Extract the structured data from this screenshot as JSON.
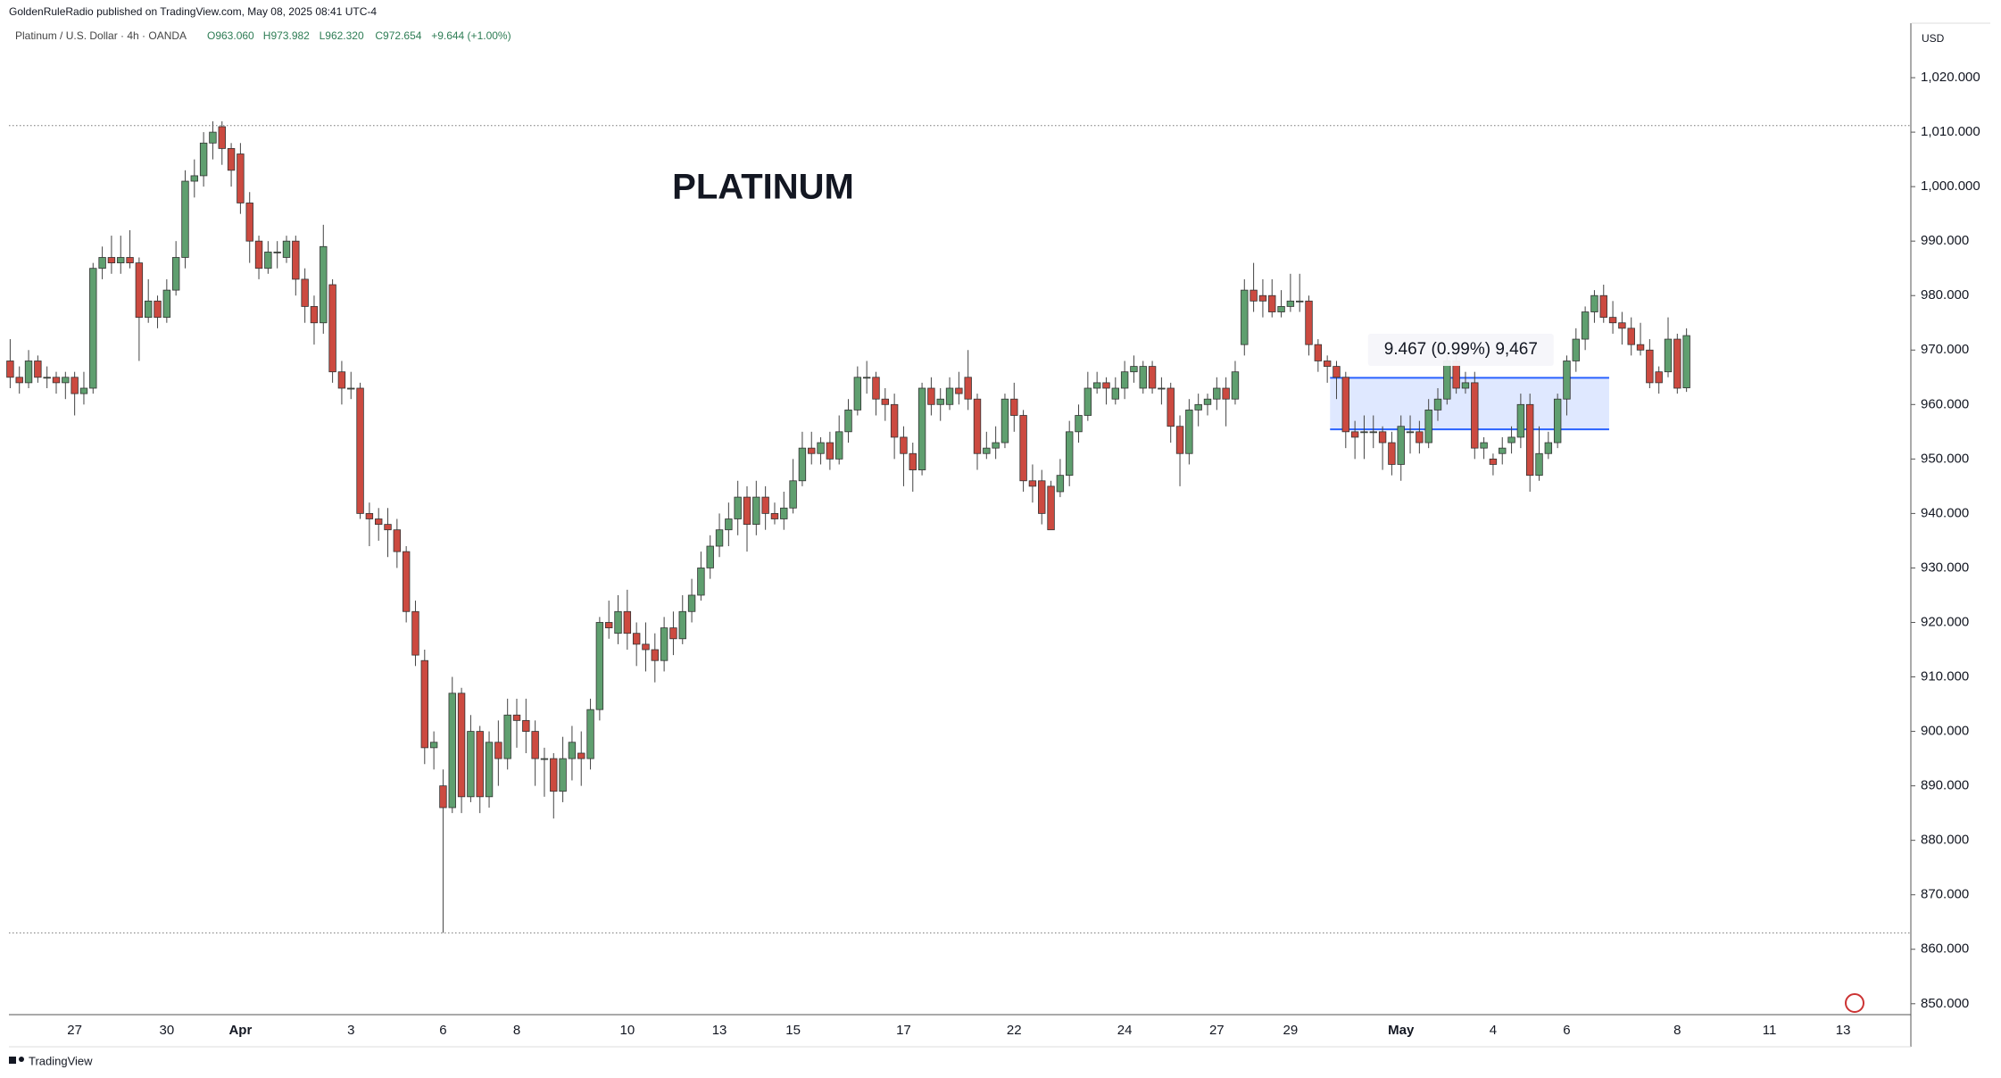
{
  "chart_data": {
    "type": "candlestick",
    "publisher": "GoldenRuleRadio published on TradingView.com, May 08, 2025 08:41 UTC-4",
    "symbol": "Platinum / U.S. Dollar · 4h · OANDA",
    "ohlc_legend": [
      "O963.060",
      "H973.982",
      "L962.320",
      "C972.654",
      "+9.644 (+1.00%)"
    ],
    "title": "PLATINUM",
    "currency": "USD",
    "brand": "TradingView",
    "up_color": "#5f9f6f",
    "down_color": "#cc4a40",
    "ylim": [
      848,
      1030
    ],
    "yticks": [
      {
        "value": 850,
        "label": "850.000"
      },
      {
        "value": 860,
        "label": "860.000"
      },
      {
        "value": 870,
        "label": "870.000"
      },
      {
        "value": 880,
        "label": "880.000"
      },
      {
        "value": 890,
        "label": "890.000"
      },
      {
        "value": 900,
        "label": "900.000"
      },
      {
        "value": 910,
        "label": "910.000"
      },
      {
        "value": 920,
        "label": "920.000"
      },
      {
        "value": 930,
        "label": "930.000"
      },
      {
        "value": 940,
        "label": "940.000"
      },
      {
        "value": 950,
        "label": "950.000"
      },
      {
        "value": 960,
        "label": "960.000"
      },
      {
        "value": 970,
        "label": "970.000"
      },
      {
        "value": 980,
        "label": "980.000"
      },
      {
        "value": 990,
        "label": "990.000"
      },
      {
        "value": 1000,
        "label": "1,000.000"
      },
      {
        "value": 1010,
        "label": "1,010.000"
      },
      {
        "value": 1020,
        "label": "1,020.000"
      }
    ],
    "hlines": [
      1011.2,
      863
    ],
    "measure": {
      "label": "9.467 (0.99%) 9,467",
      "from": 955.433,
      "to": 964.9
    },
    "categories": [
      null,
      null,
      null,
      null,
      null,
      null,
      null,
      "27",
      null,
      null,
      null,
      null,
      null,
      null,
      null,
      null,
      null,
      "30",
      null,
      null,
      null,
      null,
      null,
      null,
      null,
      "Apr",
      null,
      null,
      null,
      null,
      null,
      null,
      null,
      null,
      null,
      null,
      null,
      "3",
      null,
      null,
      null,
      null,
      null,
      null,
      null,
      null,
      null,
      "6",
      null,
      null,
      null,
      null,
      null,
      null,
      null,
      "8",
      null,
      null,
      null,
      null,
      null,
      null,
      null,
      null,
      null,
      null,
      null,
      "10",
      null,
      null,
      null,
      null,
      null,
      null,
      null,
      null,
      null,
      "13",
      null,
      null,
      null,
      null,
      null,
      null,
      null,
      "15",
      null,
      null,
      null,
      null,
      null,
      null,
      null,
      null,
      null,
      null,
      null,
      "17",
      null,
      null,
      null,
      null,
      null,
      null,
      null,
      null,
      null,
      null,
      null,
      "22",
      null,
      null,
      null,
      null,
      null,
      null,
      null,
      null,
      null,
      null,
      null,
      "24",
      null,
      null,
      null,
      null,
      null,
      null,
      null,
      null,
      null,
      "27",
      null,
      null,
      null,
      null,
      null,
      null,
      null,
      "29",
      null,
      null,
      null,
      null,
      null,
      null,
      null,
      null,
      null,
      null,
      null,
      "May",
      null,
      null,
      null,
      null,
      null,
      null,
      null,
      null,
      null,
      "4",
      null,
      null,
      null,
      null,
      null,
      null,
      null,
      "6",
      null,
      null,
      null,
      null,
      null,
      null,
      null,
      null,
      null,
      null,
      null,
      "8",
      null,
      null,
      null,
      null,
      null,
      null,
      null,
      null,
      null,
      "11",
      null,
      null,
      null,
      null,
      null,
      null,
      null,
      "13"
    ],
    "ohlc": [
      [
        968,
        972,
        963,
        965
      ],
      [
        965,
        967,
        962,
        964
      ],
      [
        964,
        970,
        963,
        968
      ],
      [
        968,
        969,
        964,
        965
      ],
      [
        965,
        967,
        963,
        965
      ],
      [
        965,
        966,
        962,
        964
      ],
      [
        964,
        966,
        961,
        965
      ],
      [
        965,
        966,
        958,
        962
      ],
      [
        962,
        966,
        960,
        963
      ],
      [
        963,
        986,
        962,
        985
      ],
      [
        985,
        989,
        983,
        987
      ],
      [
        987,
        991,
        984,
        986
      ],
      [
        986,
        991,
        984,
        987
      ],
      [
        987,
        992,
        985,
        986
      ],
      [
        986,
        987,
        968,
        976
      ],
      [
        976,
        983,
        975,
        979
      ],
      [
        979,
        980,
        974,
        976
      ],
      [
        976,
        983,
        975,
        981
      ],
      [
        981,
        990,
        980,
        987
      ],
      [
        987,
        1003,
        985,
        1001
      ],
      [
        1001,
        1005,
        998,
        1002
      ],
      [
        1002,
        1010,
        1000,
        1008
      ],
      [
        1008,
        1012,
        1005,
        1010
      ],
      [
        1011,
        1012,
        1004,
        1007
      ],
      [
        1007,
        1008,
        1000,
        1003
      ],
      [
        1006,
        1008,
        995,
        997
      ],
      [
        997,
        999,
        986,
        990
      ],
      [
        990,
        991,
        983,
        985
      ],
      [
        985,
        990,
        984,
        988
      ],
      [
        988,
        990,
        985,
        988
      ],
      [
        987,
        991,
        986,
        990
      ],
      [
        990,
        991,
        980,
        983
      ],
      [
        983,
        985,
        975,
        978
      ],
      [
        978,
        980,
        971,
        975
      ],
      [
        975,
        993,
        973,
        989
      ],
      [
        982,
        983,
        964,
        966
      ],
      [
        966,
        968,
        960,
        963
      ],
      [
        963,
        966,
        961,
        963
      ],
      [
        963,
        964,
        939,
        940
      ],
      [
        940,
        942,
        934,
        939
      ],
      [
        939,
        941,
        935,
        938
      ],
      [
        938,
        941,
        932,
        937
      ],
      [
        937,
        939,
        930,
        933
      ],
      [
        933,
        934,
        920,
        922
      ],
      [
        922,
        924,
        912,
        914
      ],
      [
        913,
        915,
        894,
        897
      ],
      [
        897,
        900,
        893,
        898
      ],
      [
        890,
        893,
        863,
        886
      ],
      [
        886,
        910,
        885,
        907
      ],
      [
        907,
        908,
        885,
        888
      ],
      [
        888,
        903,
        887,
        900
      ],
      [
        900,
        901,
        885,
        888
      ],
      [
        888,
        900,
        886,
        898
      ],
      [
        898,
        902,
        890,
        895
      ],
      [
        895,
        906,
        893,
        903
      ],
      [
        903,
        906,
        897,
        902
      ],
      [
        902,
        906,
        896,
        900
      ],
      [
        900,
        902,
        890,
        895
      ],
      [
        895,
        897,
        888,
        895
      ],
      [
        895,
        896,
        884,
        889
      ],
      [
        889,
        899,
        887,
        895
      ],
      [
        895,
        901,
        891,
        898
      ],
      [
        896,
        900,
        890,
        895
      ],
      [
        895,
        906,
        893,
        904
      ],
      [
        904,
        921,
        902,
        920
      ],
      [
        920,
        924,
        917,
        919
      ],
      [
        918,
        925,
        916,
        922
      ],
      [
        922,
        926,
        915,
        918
      ],
      [
        918,
        920,
        912,
        916
      ],
      [
        916,
        920,
        911,
        915
      ],
      [
        915,
        918,
        909,
        913
      ],
      [
        913,
        921,
        911,
        919
      ],
      [
        919,
        922,
        914,
        917
      ],
      [
        917,
        925,
        916,
        922
      ],
      [
        922,
        928,
        920,
        925
      ],
      [
        925,
        933,
        924,
        930
      ],
      [
        930,
        936,
        928,
        934
      ],
      [
        934,
        940,
        932,
        937
      ],
      [
        937,
        942,
        934,
        939
      ],
      [
        939,
        946,
        936,
        943
      ],
      [
        943,
        945,
        933,
        938
      ],
      [
        938,
        946,
        936,
        943
      ],
      [
        943,
        945,
        937,
        940
      ],
      [
        940,
        942,
        938,
        939
      ],
      [
        939,
        944,
        937,
        941
      ],
      [
        941,
        950,
        940,
        946
      ],
      [
        946,
        955,
        945,
        952
      ],
      [
        952,
        955,
        949,
        951
      ],
      [
        951,
        954,
        949,
        953
      ],
      [
        953,
        955,
        948,
        950
      ],
      [
        950,
        958,
        949,
        955
      ],
      [
        955,
        961,
        953,
        959
      ],
      [
        959,
        967,
        958,
        965
      ],
      [
        965,
        968,
        962,
        965
      ],
      [
        965,
        966,
        958,
        961
      ],
      [
        961,
        963,
        957,
        960
      ],
      [
        960,
        962,
        950,
        954
      ],
      [
        954,
        956,
        945,
        951
      ],
      [
        951,
        953,
        944,
        948
      ],
      [
        948,
        964,
        947,
        963
      ],
      [
        963,
        965,
        958,
        960
      ],
      [
        960,
        963,
        957,
        961
      ],
      [
        960,
        965,
        959,
        963
      ],
      [
        963,
        966,
        960,
        962
      ],
      [
        965,
        970,
        959,
        961
      ],
      [
        961,
        962,
        948,
        951
      ],
      [
        951,
        955,
        950,
        952
      ],
      [
        952,
        956,
        950,
        953
      ],
      [
        953,
        962,
        952,
        961
      ],
      [
        961,
        964,
        955,
        958
      ],
      [
        958,
        959,
        944,
        946
      ],
      [
        946,
        949,
        942,
        945
      ],
      [
        946,
        948,
        938,
        940
      ],
      [
        945,
        946,
        937,
        937
      ],
      [
        944,
        950,
        943,
        947
      ],
      [
        947,
        957,
        945,
        955
      ],
      [
        955,
        960,
        953,
        958
      ],
      [
        958,
        966,
        957,
        963
      ],
      [
        963,
        966,
        962,
        964
      ],
      [
        964,
        965,
        960,
        963
      ],
      [
        961,
        965,
        960,
        963
      ],
      [
        963,
        968,
        961,
        966
      ],
      [
        966,
        969,
        964,
        967
      ],
      [
        963,
        968,
        962,
        967
      ],
      [
        967,
        968,
        962,
        963
      ],
      [
        963,
        965,
        960,
        963
      ],
      [
        963,
        964,
        953,
        956
      ],
      [
        956,
        958,
        945,
        951
      ],
      [
        951,
        961,
        949,
        959
      ],
      [
        959,
        962,
        956,
        960
      ],
      [
        960,
        962,
        958,
        961
      ],
      [
        961,
        965,
        959,
        963
      ],
      [
        963,
        965,
        956,
        961
      ],
      [
        961,
        968,
        960,
        966
      ],
      [
        971,
        983,
        969,
        981
      ],
      [
        981,
        986,
        977,
        979
      ],
      [
        980,
        983,
        976,
        979
      ],
      [
        980,
        983,
        976,
        977
      ],
      [
        977,
        981,
        976,
        978
      ],
      [
        978,
        984,
        977,
        979
      ],
      [
        979,
        984,
        977,
        979
      ],
      [
        979,
        980,
        969,
        971
      ],
      [
        971,
        972,
        966,
        968
      ],
      [
        968,
        969,
        964,
        967
      ],
      [
        967,
        968,
        961,
        965
      ],
      [
        965,
        966,
        952,
        955
      ],
      [
        955,
        957,
        950,
        954
      ],
      [
        955,
        958,
        950,
        955
      ],
      [
        955,
        958,
        952,
        955
      ],
      [
        955,
        956,
        948,
        953
      ],
      [
        953,
        955,
        947,
        949
      ],
      [
        949,
        958,
        946,
        956
      ],
      [
        955,
        958,
        951,
        955
      ],
      [
        955,
        957,
        951,
        953
      ],
      [
        953,
        961,
        952,
        959
      ],
      [
        959,
        963,
        957,
        961
      ],
      [
        961,
        969,
        960,
        968
      ],
      [
        968,
        970,
        962,
        963
      ],
      [
        963,
        966,
        962,
        964
      ],
      [
        964,
        966,
        950,
        952
      ],
      [
        952,
        954,
        950,
        953
      ],
      [
        950,
        951,
        947,
        949
      ],
      [
        951,
        954,
        949,
        952
      ],
      [
        953,
        956,
        951,
        954
      ],
      [
        954,
        962,
        952,
        960
      ],
      [
        960,
        962,
        944,
        947
      ],
      [
        947,
        956,
        946,
        951
      ],
      [
        951,
        955,
        950,
        953
      ],
      [
        953,
        962,
        952,
        961
      ],
      [
        961,
        969,
        958,
        968
      ],
      [
        968,
        974,
        966,
        972
      ],
      [
        972,
        978,
        970,
        977
      ],
      [
        977,
        981,
        975,
        980
      ],
      [
        980,
        982,
        975,
        976
      ],
      [
        976,
        979,
        973,
        975
      ],
      [
        975,
        977,
        971,
        974
      ],
      [
        974,
        976,
        969,
        971
      ],
      [
        971,
        975,
        969,
        970
      ],
      [
        970,
        972,
        963,
        964
      ],
      [
        966,
        967,
        962,
        964
      ],
      [
        966,
        976,
        965,
        972
      ],
      [
        972,
        973,
        962,
        963
      ],
      [
        963.06,
        973.982,
        962.32,
        972.654
      ],
      null,
      null,
      null,
      null,
      null,
      null,
      null,
      null,
      null,
      null,
      null,
      null,
      null,
      null,
      null,
      null,
      null
    ]
  }
}
